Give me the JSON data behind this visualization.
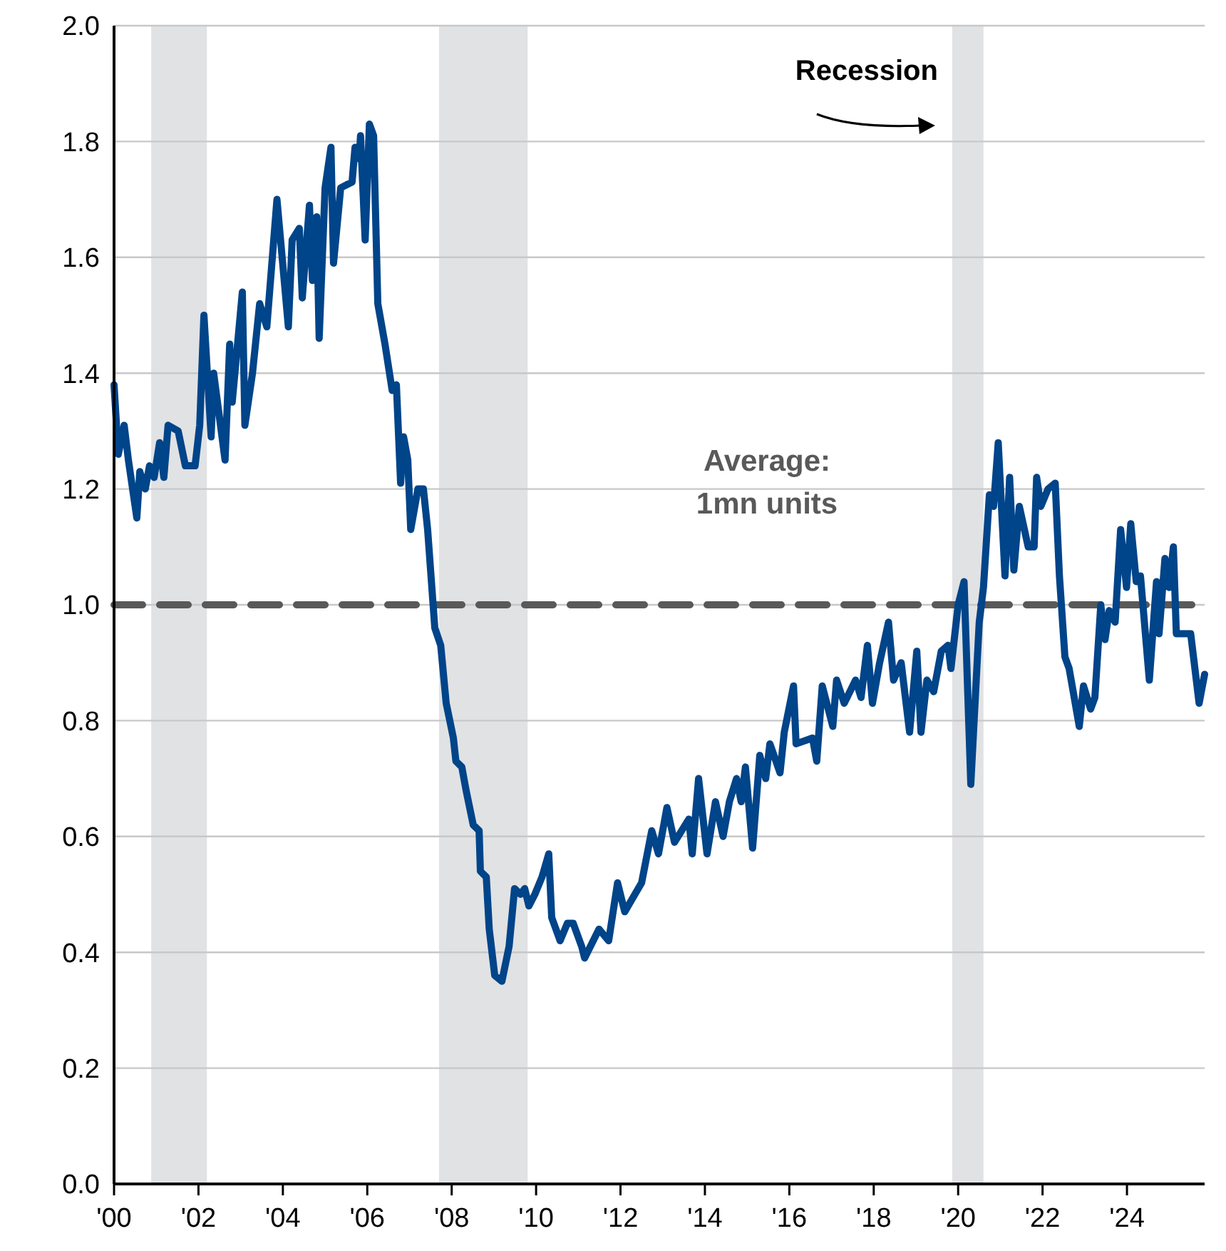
{
  "chart_data": {
    "type": "line",
    "x": [
      2000.0,
      2000.1,
      2000.24,
      2000.34,
      2000.54,
      2000.61,
      2000.74,
      2000.84,
      2000.95,
      2001.08,
      2001.18,
      2001.28,
      2001.52,
      2001.69,
      2001.92,
      2002.03,
      2002.13,
      2002.3,
      2002.36,
      2002.63,
      2002.74,
      2002.8,
      2003.04,
      2003.1,
      2003.28,
      2003.45,
      2003.62,
      2003.86,
      2004.13,
      2004.22,
      2004.39,
      2004.46,
      2004.63,
      2004.7,
      2004.8,
      2004.86,
      2005.0,
      2005.14,
      2005.2,
      2005.37,
      2005.64,
      2005.71,
      2005.81,
      2005.84,
      2005.95,
      2006.05,
      2006.15,
      2006.25,
      2006.42,
      2006.59,
      2006.69,
      2006.79,
      2006.86,
      2006.96,
      2007.03,
      2007.2,
      2007.33,
      2007.43,
      2007.6,
      2007.74,
      2007.87,
      2008.04,
      2008.1,
      2008.24,
      2008.34,
      2008.51,
      2008.65,
      2008.68,
      2008.82,
      2008.89,
      2009.02,
      2009.19,
      2009.36,
      2009.49,
      2009.63,
      2009.73,
      2009.83,
      2009.97,
      2010.14,
      2010.3,
      2010.37,
      2010.57,
      2010.74,
      2010.88,
      2011.08,
      2011.15,
      2011.49,
      2011.72,
      2011.93,
      2012.1,
      2012.5,
      2012.74,
      2012.9,
      2013.1,
      2013.28,
      2013.62,
      2013.7,
      2013.85,
      2014.05,
      2014.25,
      2014.43,
      2014.58,
      2014.75,
      2014.86,
      2014.96,
      2015.13,
      2015.3,
      2015.44,
      2015.54,
      2015.78,
      2015.88,
      2016.1,
      2016.16,
      2016.55,
      2016.65,
      2016.78,
      2017.03,
      2017.12,
      2017.3,
      2017.57,
      2017.7,
      2017.85,
      2017.97,
      2018.14,
      2018.35,
      2018.47,
      2018.65,
      2018.85,
      2019.02,
      2019.12,
      2019.26,
      2019.42,
      2019.6,
      2019.76,
      2019.83,
      2020.0,
      2020.14,
      2020.3,
      2020.5,
      2020.6,
      2020.74,
      2020.84,
      2020.95,
      2021.11,
      2021.22,
      2021.32,
      2021.45,
      2021.66,
      2021.8,
      2021.86,
      2021.96,
      2022.13,
      2022.3,
      2022.4,
      2022.53,
      2022.63,
      2022.87,
      2022.97,
      2023.14,
      2023.24,
      2023.38,
      2023.48,
      2023.58,
      2023.72,
      2023.85,
      2023.99,
      2024.09,
      2024.22,
      2024.32,
      2024.53,
      2024.7,
      2024.76,
      2024.9,
      2025.0,
      2025.1,
      2025.17,
      2025.41,
      2025.51,
      2025.71,
      2025.84
    ],
    "series": [
      {
        "color": "#004489",
        "values": [
          1.38,
          1.26,
          1.31,
          1.25,
          1.15,
          1.23,
          1.2,
          1.24,
          1.22,
          1.28,
          1.22,
          1.31,
          1.3,
          1.24,
          1.24,
          1.31,
          1.5,
          1.29,
          1.4,
          1.25,
          1.45,
          1.35,
          1.54,
          1.31,
          1.4,
          1.52,
          1.48,
          1.7,
          1.48,
          1.63,
          1.65,
          1.53,
          1.69,
          1.56,
          1.67,
          1.46,
          1.72,
          1.79,
          1.59,
          1.72,
          1.73,
          1.79,
          1.77,
          1.81,
          1.63,
          1.83,
          1.81,
          1.52,
          1.45,
          1.37,
          1.38,
          1.21,
          1.29,
          1.25,
          1.13,
          1.2,
          1.2,
          1.13,
          0.96,
          0.93,
          0.83,
          0.77,
          0.73,
          0.72,
          0.68,
          0.62,
          0.61,
          0.54,
          0.53,
          0.44,
          0.36,
          0.35,
          0.41,
          0.51,
          0.5,
          0.51,
          0.48,
          0.5,
          0.53,
          0.57,
          0.46,
          0.42,
          0.45,
          0.45,
          0.41,
          0.39,
          0.44,
          0.42,
          0.52,
          0.47,
          0.52,
          0.61,
          0.57,
          0.65,
          0.59,
          0.63,
          0.57,
          0.7,
          0.57,
          0.66,
          0.6,
          0.66,
          0.7,
          0.66,
          0.72,
          0.58,
          0.74,
          0.7,
          0.76,
          0.71,
          0.78,
          0.86,
          0.76,
          0.77,
          0.73,
          0.86,
          0.79,
          0.87,
          0.83,
          0.87,
          0.84,
          0.93,
          0.83,
          0.9,
          0.97,
          0.87,
          0.9,
          0.78,
          0.92,
          0.78,
          0.87,
          0.85,
          0.92,
          0.93,
          0.89,
          1.0,
          1.04,
          0.69,
          0.97,
          1.03,
          1.19,
          1.17,
          1.28,
          1.05,
          1.22,
          1.06,
          1.17,
          1.1,
          1.1,
          1.22,
          1.17,
          1.2,
          1.21,
          1.05,
          0.91,
          0.89,
          0.79,
          0.86,
          0.82,
          0.84,
          1.0,
          0.94,
          0.99,
          0.97,
          1.13,
          1.03,
          1.14,
          1.04,
          1.05,
          0.87,
          1.04,
          0.95,
          1.08,
          1.03,
          1.1,
          0.95,
          0.95,
          0.95,
          0.83,
          0.88
        ]
      }
    ],
    "xlim": [
      2000,
      2025.84
    ],
    "xticks": [
      {
        "value": 2000,
        "label": "'00"
      },
      {
        "value": 2002,
        "label": "'02"
      },
      {
        "value": 2004,
        "label": "'04"
      },
      {
        "value": 2006,
        "label": "'06"
      },
      {
        "value": 2008,
        "label": "'08"
      },
      {
        "value": 2010,
        "label": "'10"
      },
      {
        "value": 2012,
        "label": "'12"
      },
      {
        "value": 2014,
        "label": "'14"
      },
      {
        "value": 2016,
        "label": "'16"
      },
      {
        "value": 2018,
        "label": "'18"
      },
      {
        "value": 2020,
        "label": "'20"
      },
      {
        "value": 2022,
        "label": "'22"
      },
      {
        "value": 2024,
        "label": "'24"
      }
    ],
    "ylim": [
      0,
      2
    ],
    "yticks": [
      {
        "value": 0,
        "label": "0.0"
      },
      {
        "value": 0.2,
        "label": "0.2"
      },
      {
        "value": 0.4,
        "label": "0.4"
      },
      {
        "value": 0.6,
        "label": "0.6"
      },
      {
        "value": 0.8,
        "label": "0.8"
      },
      {
        "value": 1,
        "label": "1.0"
      },
      {
        "value": 1.2,
        "label": "1.2"
      },
      {
        "value": 1.4,
        "label": "1.4"
      },
      {
        "value": 1.6,
        "label": "1.6"
      },
      {
        "value": 1.8,
        "label": "1.8"
      },
      {
        "value": 2,
        "label": "2.0"
      }
    ],
    "grid": "y",
    "ref_lines": [
      {
        "axis": "y",
        "value": 1,
        "label": "Average:\n1mn units",
        "color": "#595959",
        "line_style": "dashed"
      }
    ],
    "bands": [
      {
        "axis": "x",
        "from": 2000.88,
        "to": 2002.2,
        "color": "#e1e2e4"
      },
      {
        "axis": "x",
        "from": 2007.7,
        "to": 2009.8,
        "color": "#e1e2e4"
      },
      {
        "axis": "x",
        "from": 2019.86,
        "to": 2020.6,
        "color": "#e1e2e4",
        "label": "Recession"
      }
    ]
  }
}
